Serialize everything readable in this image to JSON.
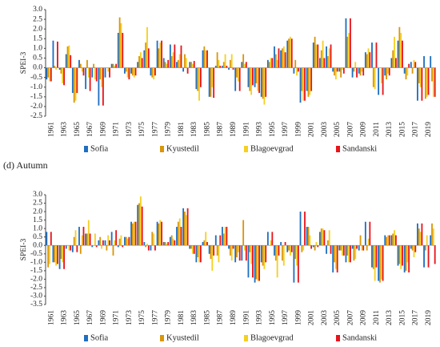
{
  "chart_data": [
    {
      "type": "bar",
      "y_label": "SPEI-3",
      "categories": [
        "1961",
        null,
        "1963",
        null,
        "1965",
        null,
        "1967",
        null,
        "1969",
        null,
        "1971",
        null,
        "1973",
        null,
        "1975",
        null,
        "1977",
        null,
        "1979",
        null,
        "1981",
        null,
        "1983",
        null,
        "1985",
        null,
        "1987",
        null,
        "1989",
        null,
        "1991",
        null,
        "1993",
        null,
        "1995",
        null,
        "1997",
        null,
        "1999",
        null,
        "2001",
        null,
        "2003",
        null,
        "2005",
        null,
        "2007",
        null,
        "2009",
        null,
        "2011",
        null,
        "2013",
        null,
        "2015",
        null,
        "2017",
        null,
        "2019",
        null
      ],
      "ylim": [
        -2.5,
        3.0
      ],
      "yticks": [
        {
          "value": 3.0,
          "label": "3.0"
        },
        2.5,
        {
          "value": 2.0,
          "label": "2.0"
        },
        1.5,
        {
          "value": 1.0,
          "label": "1.0"
        },
        0.5,
        {
          "value": 0,
          "label": "0.0"
        },
        -0.5,
        {
          "value": -1.0,
          "label": "-1.0"
        },
        -1.5,
        {
          "value": -2.0,
          "label": "-2.0"
        },
        -2.5
      ],
      "series": [
        {
          "name": "Sofia",
          "color": "#1f6fc0",
          "values": [
            -0.6,
            1.4,
            -0.1,
            0.7,
            -1.3,
            0.4,
            -1.1,
            -0.5,
            -1.95,
            -0.5,
            0.2,
            1.8,
            -0.3,
            -0.3,
            0.3,
            0.9,
            -0.4,
            1.4,
            0.5,
            1.2,
            0.3,
            -0.2,
            0.3,
            -1.1,
            0.9,
            -1.5,
            0.1,
            0.1,
            -0.1,
            -1.2,
            0.3,
            -1.0,
            -1.0,
            -1.5,
            0.4,
            1.1,
            0.9,
            1.4,
            -0.3,
            -1.8,
            -1.2,
            1.3,
            0.5,
            1.1,
            -0.2,
            -0.2,
            2.55,
            -0.5,
            -0.3,
            0.8,
            1.3,
            -1.4,
            -0.4,
            0.5,
            1.4,
            -0.3,
            0.3,
            -1.7,
            0.6,
            0.6
          ]
        },
        {
          "name": "Kyustedil",
          "color": "#d9960a",
          "values": [
            -0.5,
            0.1,
            -0.3,
            1.1,
            -1.8,
            0.2,
            0.4,
            0.2,
            -0.6,
            0.0,
            0.2,
            2.6,
            -0.2,
            -0.4,
            0.6,
            1.3,
            -0.5,
            1.0,
            0.3,
            0.6,
            0.4,
            0.7,
            0.3,
            -1.2,
            1.1,
            -1.5,
            0.8,
            0.3,
            0.4,
            -0.5,
            0.7,
            -1.2,
            -0.8,
            -1.6,
            0.3,
            0.7,
            1.0,
            1.5,
            0.4,
            -1.2,
            -1.5,
            1.6,
            0.9,
            0.6,
            -0.4,
            -0.5,
            1.6,
            -0.2,
            -0.4,
            0.7,
            -1.0,
            0.0,
            -0.6,
            0.9,
            2.1,
            -0.6,
            -0.3,
            -0.8,
            -1.6,
            -0.7
          ]
        },
        {
          "name": "Blagoevgrad",
          "color": "#f5d020",
          "values": [
            -0.7,
            -0.1,
            -0.8,
            1.15,
            -1.7,
            -0.2,
            -0.5,
            -0.6,
            -1.0,
            -0.2,
            0.1,
            2.3,
            -0.5,
            -0.5,
            0.8,
            2.1,
            -0.6,
            1.3,
            0.2,
            0.8,
            0.7,
            0.5,
            0.2,
            -1.7,
            0.9,
            -1.0,
            0.4,
            0.7,
            0.7,
            -0.7,
            0.2,
            -1.4,
            -1.2,
            -1.9,
            0.5,
            0.4,
            1.1,
            1.6,
            -0.4,
            -1.7,
            -1.4,
            1.2,
            1.4,
            1.0,
            -0.6,
            -0.1,
            1.8,
            0.3,
            -0.2,
            1.0,
            -1.1,
            -0.8,
            -0.3,
            1.6,
            1.8,
            -0.4,
            0.4,
            -1.0,
            -1.5,
            -1.5
          ]
        },
        {
          "name": "Sandanski",
          "color": "#e8141c",
          "values": [
            -0.7,
            1.35,
            -0.9,
            0.65,
            -1.3,
            -0.4,
            -1.2,
            -0.7,
            -1.95,
            -0.5,
            0.2,
            1.8,
            -0.6,
            -0.4,
            0.5,
            1.0,
            -0.4,
            1.4,
            0.4,
            1.2,
            1.15,
            -0.3,
            0.35,
            -1.0,
            0.9,
            -1.55,
            0.1,
            0.1,
            -0.1,
            -1.2,
            0.3,
            -0.9,
            -1.3,
            -1.5,
            0.5,
            1.0,
            0.8,
            1.5,
            -0.2,
            -1.7,
            -1.2,
            1.2,
            0.5,
            1.2,
            -0.2,
            -0.3,
            2.55,
            -0.5,
            -0.4,
            0.8,
            1.3,
            -1.4,
            -0.4,
            0.5,
            1.4,
            0.2,
            0.3,
            -1.7,
            -1.4,
            -1.5
          ]
        }
      ]
    },
    {
      "type": "bar",
      "title": "(d) Autumn",
      "y_label": "SPEI-3",
      "categories": [
        "1961",
        null,
        "1963",
        null,
        "1965",
        null,
        "1967",
        null,
        "1969",
        null,
        "1971",
        null,
        "1973",
        null,
        "1975",
        null,
        "1977",
        null,
        "1979",
        null,
        "1981",
        null,
        "1983",
        null,
        "1985",
        null,
        "1987",
        null,
        "1989",
        null,
        "1991",
        null,
        "1993",
        null,
        "1995",
        null,
        "1997",
        null,
        "1999",
        null,
        "2001",
        null,
        "2003",
        null,
        "2005",
        null,
        "2007",
        null,
        "2009",
        null,
        "2011",
        null,
        "2013",
        null,
        "2015",
        null,
        "2017",
        null,
        "2019",
        null
      ],
      "ylim": [
        -3.5,
        3.0
      ],
      "yticks": [
        {
          "value": 3.0,
          "label": "3.0"
        },
        2.5,
        {
          "value": 2.0,
          "label": "2.0"
        },
        1.5,
        {
          "value": 1.0,
          "label": "1.0"
        },
        0.5,
        {
          "value": 0,
          "label": "0.0"
        },
        -0.5,
        {
          "value": -1.0,
          "label": "-1.0"
        },
        -1.5,
        {
          "value": -2.0,
          "label": "-2.0"
        },
        -2.5,
        {
          "value": -3.0,
          "label": "-3.0"
        },
        -3.5
      ],
      "series": [
        {
          "name": "Sofia",
          "color": "#1f6fc0",
          "values": [
            0.8,
            -1.0,
            -1.4,
            -0.2,
            -0.4,
            1.1,
            0.7,
            -0.1,
            0.3,
            0.3,
            0.8,
            -0.1,
            0.5,
            1.4,
            2.4,
            0.2,
            -0.3,
            1.4,
            0.2,
            0.5,
            1.1,
            2.2,
            -0.2,
            -1.0,
            0.2,
            -0.5,
            0.6,
            1.1,
            -0.2,
            -1.0,
            -0.9,
            -1.9,
            -2.2,
            -1.0,
            0.8,
            -0.6,
            0.2,
            -0.4,
            -2.2,
            2.0,
            1.1,
            -0.1,
            0.8,
            -0.5,
            -1.6,
            -0.3,
            -1.0,
            -0.2,
            -0.3,
            1.4,
            -1.3,
            -2.1,
            0.6,
            0.6,
            -1.2,
            -1.6,
            -0.2,
            1.3,
            -1.3,
            0.6
          ]
        },
        {
          "name": "Kyustedil",
          "color": "#d9960a",
          "values": [
            -1.3,
            -1.0,
            -0.8,
            0.0,
            0.5,
            -0.5,
            0.7,
            0.0,
            0.5,
            -0.3,
            -0.6,
            0.4,
            0.5,
            1.3,
            2.5,
            -0.1,
            0.8,
            1.3,
            0.2,
            0.6,
            1.4,
            2.0,
            -0.2,
            -0.7,
            0.3,
            -0.8,
            -0.6,
            0.7,
            -0.6,
            -0.7,
            1.5,
            -0.4,
            -2.0,
            -1.2,
            0.0,
            -0.9,
            -0.9,
            -0.3,
            -0.8,
            -0.4,
            1.1,
            -0.3,
            1.0,
            0.3,
            -1.0,
            -0.3,
            -0.6,
            -0.9,
            0.6,
            -0.3,
            -1.4,
            -2.2,
            0.5,
            0.7,
            -1.1,
            -1.5,
            -0.3,
            1.0,
            -0.3,
            1.3
          ]
        },
        {
          "name": "Blagoevgrad",
          "color": "#f5d020",
          "values": [
            -1.1,
            -1.2,
            -1.0,
            -0.3,
            0.9,
            0.6,
            1.5,
            0.7,
            -0.2,
            0.6,
            0.3,
            0.6,
            0.4,
            1.4,
            2.9,
            0.1,
            0.7,
            1.5,
            0.1,
            0.4,
            1.6,
            1.8,
            -0.5,
            -1.0,
            0.8,
            -1.5,
            -1.0,
            1.1,
            -0.9,
            -0.4,
            -0.3,
            -1.1,
            -2.1,
            -1.4,
            0.3,
            -1.9,
            -1.2,
            -0.6,
            -1.2,
            -0.3,
            0.6,
            0.2,
            1.0,
            0.9,
            -1.4,
            -0.6,
            -1.0,
            -0.8,
            -0.3,
            0.4,
            -2.1,
            -2.0,
            0.6,
            0.9,
            -1.4,
            -1.0,
            -0.7,
            0.8,
            0.6,
            1.0
          ]
        },
        {
          "name": "Sandanski",
          "color": "#e8141c",
          "values": [
            0.8,
            -1.1,
            -1.4,
            -0.3,
            -0.4,
            1.1,
            0.7,
            -0.1,
            0.3,
            0.3,
            0.9,
            -0.1,
            0.5,
            1.4,
            2.3,
            -0.3,
            -0.3,
            1.4,
            0.2,
            0.3,
            1.1,
            2.2,
            -0.5,
            -1.0,
            0.2,
            -0.6,
            0.6,
            1.1,
            -0.2,
            -0.9,
            -0.9,
            -1.9,
            -2.1,
            -1.0,
            0.8,
            -0.6,
            0.2,
            -0.4,
            -2.2,
            2.0,
            -0.2,
            -0.1,
            0.9,
            -0.5,
            -1.6,
            -0.6,
            -1.0,
            -0.2,
            -0.3,
            1.4,
            -1.3,
            -2.1,
            0.6,
            0.6,
            -1.2,
            -1.6,
            -0.4,
            1.3,
            -1.3,
            -1.1
          ]
        }
      ]
    }
  ]
}
